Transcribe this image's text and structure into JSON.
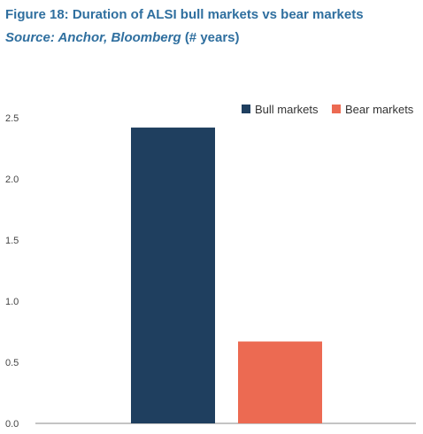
{
  "header": {
    "title": "Figure 18: Duration of ALSI bull markets vs bear markets",
    "source": "Source: Anchor, Bloomberg",
    "unit": "(# years)"
  },
  "chart_data": {
    "type": "bar",
    "categories": [
      ""
    ],
    "series": [
      {
        "name": "Bull markets",
        "values": [
          2.42
        ],
        "color": "#1f3f5f"
      },
      {
        "name": "Bear markets",
        "values": [
          0.67
        ],
        "color": "#ec6a52"
      }
    ],
    "yticks": [
      "0.0",
      "0.5",
      "1.0",
      "1.5",
      "2.0",
      "2.5"
    ],
    "ylim": [
      0,
      2.5
    ],
    "grid": false,
    "legend": "top-right"
  }
}
